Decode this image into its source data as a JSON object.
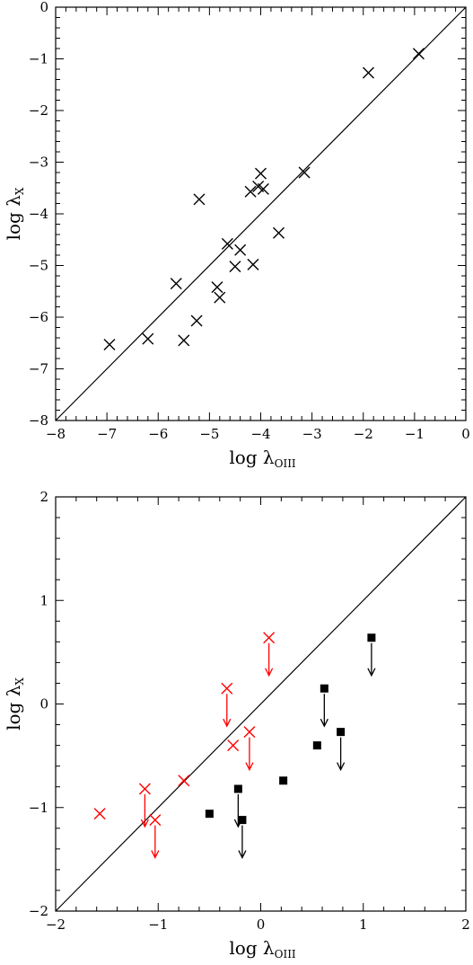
{
  "chart_data": [
    {
      "type": "scatter",
      "xlabel": "log λOIII",
      "ylabel": "log λX",
      "xlabel_main": "log λ",
      "xlabel_sub": "OIII",
      "ylabel_main": "log λ",
      "ylabel_sub": "X",
      "xlim": [
        -8,
        0
      ],
      "ylim": [
        -8,
        0
      ],
      "xticks": [
        -8,
        -7,
        -6,
        -5,
        -4,
        -3,
        -2,
        -1,
        0
      ],
      "yticks": [
        -8,
        -7,
        -6,
        -5,
        -4,
        -3,
        -2,
        -1,
        0
      ],
      "xtick_labels": [
        "−8",
        "−7",
        "−6",
        "−5",
        "−4",
        "−3",
        "−2",
        "−1",
        "0"
      ],
      "ytick_labels": [
        "−8",
        "−7",
        "−6",
        "−5",
        "−4",
        "−3",
        "−2",
        "−1",
        "0"
      ],
      "reference_line": "y = x",
      "grid": false,
      "series": [
        {
          "marker": "x",
          "color": "#000000",
          "points": [
            {
              "x": -6.95,
              "y": -6.53
            },
            {
              "x": -6.2,
              "y": -6.42
            },
            {
              "x": -5.65,
              "y": -5.35
            },
            {
              "x": -5.5,
              "y": -6.45
            },
            {
              "x": -5.25,
              "y": -6.07
            },
            {
              "x": -5.2,
              "y": -3.72
            },
            {
              "x": -4.85,
              "y": -5.42
            },
            {
              "x": -4.8,
              "y": -5.62
            },
            {
              "x": -4.65,
              "y": -4.58
            },
            {
              "x": -4.5,
              "y": -5.02
            },
            {
              "x": -4.4,
              "y": -4.7
            },
            {
              "x": -4.2,
              "y": -3.57
            },
            {
              "x": -4.15,
              "y": -4.98
            },
            {
              "x": -4.05,
              "y": -3.47
            },
            {
              "x": -4.0,
              "y": -3.22
            },
            {
              "x": -3.95,
              "y": -3.52
            },
            {
              "x": -3.65,
              "y": -4.37
            },
            {
              "x": -3.15,
              "y": -3.2
            },
            {
              "x": -1.9,
              "y": -1.27
            },
            {
              "x": -0.92,
              "y": -0.9
            }
          ]
        }
      ]
    },
    {
      "type": "scatter",
      "xlabel": "log λOIII",
      "ylabel": "log λX",
      "xlabel_main": "log λ",
      "xlabel_sub": "OIII",
      "ylabel_main": "log λ",
      "ylabel_sub": "X",
      "xlim": [
        -2,
        2
      ],
      "ylim": [
        -2,
        2
      ],
      "xticks": [
        -2,
        -1,
        0,
        1,
        2
      ],
      "yticks": [
        -2,
        -1,
        0,
        1,
        2
      ],
      "xtick_labels": [
        "−2",
        "−1",
        "0",
        "1",
        "2"
      ],
      "ytick_labels": [
        "−2",
        "−1",
        "0",
        "1",
        "2"
      ],
      "reference_line": "y = x",
      "grid": false,
      "series": [
        {
          "marker": "x",
          "color": "#ff0000",
          "points": [
            {
              "x": -1.57,
              "y": -1.06,
              "upper_limit": false
            },
            {
              "x": -1.13,
              "y": -0.82,
              "upper_limit": true
            },
            {
              "x": -1.03,
              "y": -1.12,
              "upper_limit": true
            },
            {
              "x": -0.75,
              "y": -0.74,
              "upper_limit": false
            },
            {
              "x": -0.33,
              "y": 0.15,
              "upper_limit": true
            },
            {
              "x": -0.27,
              "y": -0.4,
              "upper_limit": false
            },
            {
              "x": -0.11,
              "y": -0.27,
              "upper_limit": true
            },
            {
              "x": 0.08,
              "y": 0.64,
              "upper_limit": true
            }
          ]
        },
        {
          "marker": "square",
          "color": "#000000",
          "points": [
            {
              "x": -0.5,
              "y": -1.06,
              "upper_limit": false
            },
            {
              "x": -0.22,
              "y": -0.82,
              "upper_limit": true
            },
            {
              "x": -0.18,
              "y": -1.12,
              "upper_limit": true
            },
            {
              "x": 0.22,
              "y": -0.74,
              "upper_limit": false
            },
            {
              "x": 0.55,
              "y": -0.4,
              "upper_limit": false
            },
            {
              "x": 0.62,
              "y": 0.15,
              "upper_limit": true
            },
            {
              "x": 0.78,
              "y": -0.27,
              "upper_limit": true
            },
            {
              "x": 1.08,
              "y": 0.64,
              "upper_limit": true
            }
          ]
        }
      ]
    }
  ]
}
